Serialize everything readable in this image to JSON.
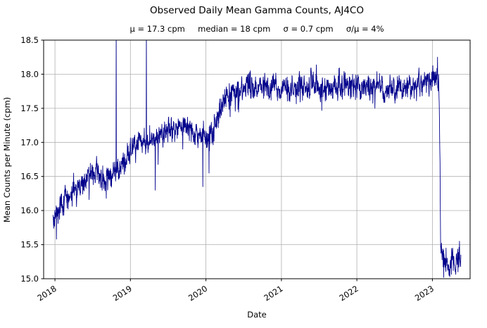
{
  "chart_data": {
    "type": "line",
    "title": "Observed Daily Mean Gamma Counts, AJ4CO",
    "subtitle": "μ = 17.3 cpm     median = 18 cpm     σ = 0.7 cpm     σ/μ = 4%",
    "stats": {
      "mean": "μ = 17.3 cpm",
      "median": "median = 18 cpm",
      "sigma": "σ = 0.7 cpm",
      "sigma_over_mu": "σ/μ = 4%"
    },
    "xlabel": "Date",
    "ylabel": "Mean Counts per Minute (cpm)",
    "series_name": "daily mean gamma counts",
    "line_color": "#00008b",
    "grid": true,
    "grid_color": "#b0b0b0",
    "xlim": [
      2017.85,
      2023.5
    ],
    "ylim": [
      15.0,
      18.5
    ],
    "xticks": [
      2018,
      2019,
      2020,
      2021,
      2022,
      2023
    ],
    "yticks": [
      15.0,
      15.5,
      16.0,
      16.5,
      17.0,
      17.5,
      18.0,
      18.5
    ],
    "x_units": "decimal_year",
    "x_start": 2017.97,
    "x_end": 2023.38,
    "seed": 42,
    "noise_sigma": 0.09,
    "trend": [
      [
        2017.97,
        15.85
      ],
      [
        2018.05,
        16.0
      ],
      [
        2018.15,
        16.15
      ],
      [
        2018.3,
        16.32
      ],
      [
        2018.45,
        16.5
      ],
      [
        2018.55,
        16.55
      ],
      [
        2018.65,
        16.45
      ],
      [
        2018.72,
        16.5
      ],
      [
        2018.8,
        16.6
      ],
      [
        2018.88,
        16.62
      ],
      [
        2018.95,
        16.8
      ],
      [
        2019.02,
        16.95
      ],
      [
        2019.1,
        17.0
      ],
      [
        2019.2,
        17.0
      ],
      [
        2019.35,
        17.05
      ],
      [
        2019.5,
        17.15
      ],
      [
        2019.62,
        17.22
      ],
      [
        2019.72,
        17.25
      ],
      [
        2019.82,
        17.15
      ],
      [
        2019.92,
        17.05
      ],
      [
        2020.0,
        17.1
      ],
      [
        2020.1,
        17.2
      ],
      [
        2020.18,
        17.45
      ],
      [
        2020.28,
        17.68
      ],
      [
        2020.4,
        17.75
      ],
      [
        2020.6,
        17.8
      ],
      [
        2021.0,
        17.8
      ],
      [
        2021.5,
        17.82
      ],
      [
        2022.0,
        17.85
      ],
      [
        2022.5,
        17.8
      ],
      [
        2022.85,
        17.85
      ],
      [
        2023.0,
        17.9
      ],
      [
        2023.06,
        18.0
      ],
      [
        2023.09,
        17.8
      ],
      [
        2023.11,
        15.6
      ],
      [
        2023.13,
        15.3
      ],
      [
        2023.2,
        15.2
      ],
      [
        2023.3,
        15.25
      ],
      [
        2023.38,
        15.3
      ]
    ],
    "spikes": [
      [
        2018.02,
        15.58
      ],
      [
        2018.68,
        16.18
      ],
      [
        2018.81,
        18.7
      ],
      [
        2019.21,
        18.7
      ],
      [
        2019.33,
        16.3
      ],
      [
        2019.96,
        16.35
      ],
      [
        2020.04,
        16.55
      ],
      [
        2023.07,
        18.25
      ],
      [
        2023.15,
        15.02
      ],
      [
        2023.18,
        15.45
      ],
      [
        2023.23,
        15.03
      ],
      [
        2023.27,
        15.45
      ],
      [
        2023.34,
        15.1
      ],
      [
        2023.36,
        15.55
      ]
    ]
  }
}
